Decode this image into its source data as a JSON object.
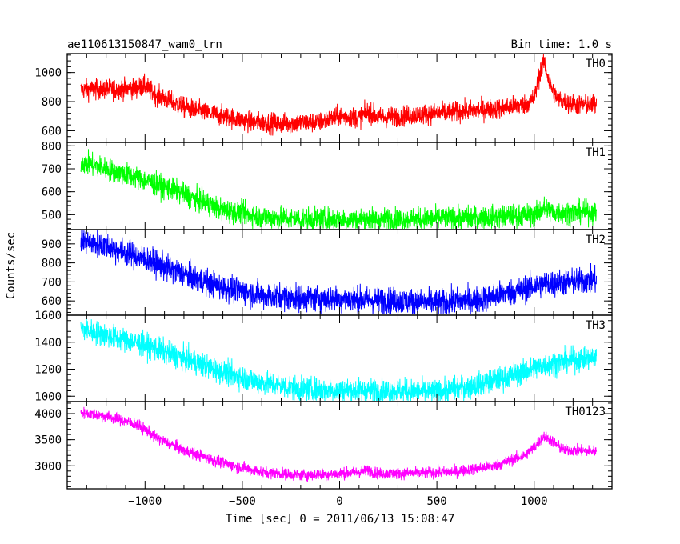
{
  "chart_data": {
    "type": "line",
    "title_left": "ae110613150847_wam0_trn",
    "title_right": "Bin time: 1.0 s",
    "xlabel": "Time [sec] 0 = 2011/06/13 15:08:47",
    "ylabel": "Counts/sec",
    "xlim": [
      -1400,
      1400
    ],
    "x_ticks": [
      -1000,
      -500,
      0,
      500,
      1000
    ],
    "x_tick_labels": [
      "−1000",
      "−500",
      "0",
      "500",
      "1000"
    ],
    "x_range_data": [
      -1330,
      1320
    ],
    "panels": [
      {
        "name": "TH0",
        "color": "#ff0000",
        "ylim": [
          520,
          1130
        ],
        "y_ticks": [
          600,
          800,
          1000
        ],
        "y_tick_labels": [
          "600",
          "800",
          "1000"
        ],
        "noise": 35,
        "trend": [
          [
            -1330,
            880
          ],
          [
            -1200,
            885
          ],
          [
            -1050,
            890
          ],
          [
            -1000,
            910
          ],
          [
            -950,
            850
          ],
          [
            -800,
            760
          ],
          [
            -600,
            700
          ],
          [
            -450,
            660
          ],
          [
            -300,
            650
          ],
          [
            -100,
            660
          ],
          [
            0,
            700
          ],
          [
            100,
            690
          ],
          [
            150,
            730
          ],
          [
            200,
            690
          ],
          [
            400,
            710
          ],
          [
            600,
            730
          ],
          [
            800,
            750
          ],
          [
            950,
            780
          ],
          [
            1000,
            820
          ],
          [
            1030,
            1000
          ],
          [
            1050,
            1080
          ],
          [
            1080,
            920
          ],
          [
            1120,
            820
          ],
          [
            1200,
            780
          ],
          [
            1320,
            780
          ]
        ]
      },
      {
        "name": "TH1",
        "color": "#00ff00",
        "ylim": [
          435,
          815
        ],
        "y_ticks": [
          500,
          600,
          700,
          800
        ],
        "y_tick_labels": [
          "500",
          "600",
          "700",
          "800"
        ],
        "noise": 25,
        "trend": [
          [
            -1330,
            730
          ],
          [
            -1200,
            700
          ],
          [
            -1000,
            650
          ],
          [
            -800,
            590
          ],
          [
            -600,
            520
          ],
          [
            -400,
            490
          ],
          [
            -200,
            480
          ],
          [
            0,
            480
          ],
          [
            400,
            480
          ],
          [
            800,
            490
          ],
          [
            1000,
            500
          ],
          [
            1050,
            530
          ],
          [
            1100,
            510
          ],
          [
            1320,
            510
          ]
        ]
      },
      {
        "name": "TH2",
        "color": "#0000ff",
        "ylim": [
          525,
          975
        ],
        "y_ticks": [
          600,
          700,
          800,
          900
        ],
        "y_tick_labels": [
          "600",
          "700",
          "800",
          "900"
        ],
        "noise": 35,
        "trend": [
          [
            -1330,
            920
          ],
          [
            -1200,
            890
          ],
          [
            -1000,
            820
          ],
          [
            -800,
            740
          ],
          [
            -600,
            670
          ],
          [
            -400,
            630
          ],
          [
            -200,
            615
          ],
          [
            0,
            610
          ],
          [
            300,
            600
          ],
          [
            500,
            590
          ],
          [
            700,
            605
          ],
          [
            900,
            650
          ],
          [
            1050,
            690
          ],
          [
            1200,
            700
          ],
          [
            1320,
            710
          ]
        ]
      },
      {
        "name": "TH3",
        "color": "#00ffff",
        "ylim": [
          960,
          1600
        ],
        "y_ticks": [
          1000,
          1200,
          1400,
          1600
        ],
        "y_tick_labels": [
          "1000",
          "1200",
          "1400",
          "1600"
        ],
        "noise": 45,
        "trend": [
          [
            -1330,
            1500
          ],
          [
            -1200,
            1450
          ],
          [
            -1000,
            1380
          ],
          [
            -800,
            1280
          ],
          [
            -600,
            1180
          ],
          [
            -400,
            1100
          ],
          [
            -200,
            1050
          ],
          [
            0,
            1045
          ],
          [
            300,
            1040
          ],
          [
            500,
            1030
          ],
          [
            700,
            1080
          ],
          [
            900,
            1160
          ],
          [
            1050,
            1230
          ],
          [
            1200,
            1270
          ],
          [
            1320,
            1290
          ]
        ]
      },
      {
        "name": "TH0123",
        "color": "#ff00ff",
        "ylim": [
          2560,
          4230
        ],
        "y_ticks": [
          3000,
          3500,
          4000
        ],
        "y_tick_labels": [
          "3000",
          "3500",
          "4000"
        ],
        "noise": 55,
        "trend": [
          [
            -1330,
            4020
          ],
          [
            -1200,
            3950
          ],
          [
            -1050,
            3800
          ],
          [
            -1000,
            3700
          ],
          [
            -950,
            3550
          ],
          [
            -800,
            3300
          ],
          [
            -600,
            3050
          ],
          [
            -400,
            2880
          ],
          [
            -200,
            2820
          ],
          [
            0,
            2850
          ],
          [
            100,
            2880
          ],
          [
            150,
            2920
          ],
          [
            200,
            2850
          ],
          [
            400,
            2860
          ],
          [
            600,
            2890
          ],
          [
            800,
            3000
          ],
          [
            950,
            3200
          ],
          [
            1000,
            3350
          ],
          [
            1050,
            3570
          ],
          [
            1100,
            3450
          ],
          [
            1150,
            3300
          ],
          [
            1320,
            3280
          ]
        ]
      }
    ]
  }
}
